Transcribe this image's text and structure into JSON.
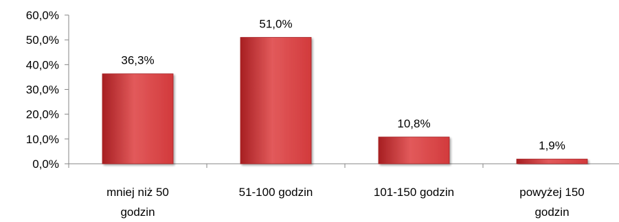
{
  "chart_data": {
    "type": "bar",
    "title": "",
    "xlabel": "",
    "ylabel": "",
    "categories": [
      [
        "mniej niż 50",
        "godzin"
      ],
      [
        "51-100 godzin"
      ],
      [
        "101-150 godzin"
      ],
      [
        "powyżej 150",
        "godzin"
      ]
    ],
    "values": [
      36.3,
      51.0,
      10.8,
      1.9
    ],
    "data_labels": [
      "36,3%",
      "51,0%",
      "10,8%",
      "1,9%"
    ],
    "ylim": [
      0,
      60
    ],
    "yticks": [
      0,
      10,
      20,
      30,
      40,
      50,
      60
    ],
    "ytick_labels": [
      "0,0%",
      "10,0%",
      "20,0%",
      "30,0%",
      "40,0%",
      "50,0%",
      "60,0%"
    ],
    "grid": false,
    "legend": "none",
    "bar_color": "#d23a3c",
    "bar_color_dark": "#a71f22",
    "bar_color_light": "#e25a5b",
    "axis_color": "#868686"
  }
}
